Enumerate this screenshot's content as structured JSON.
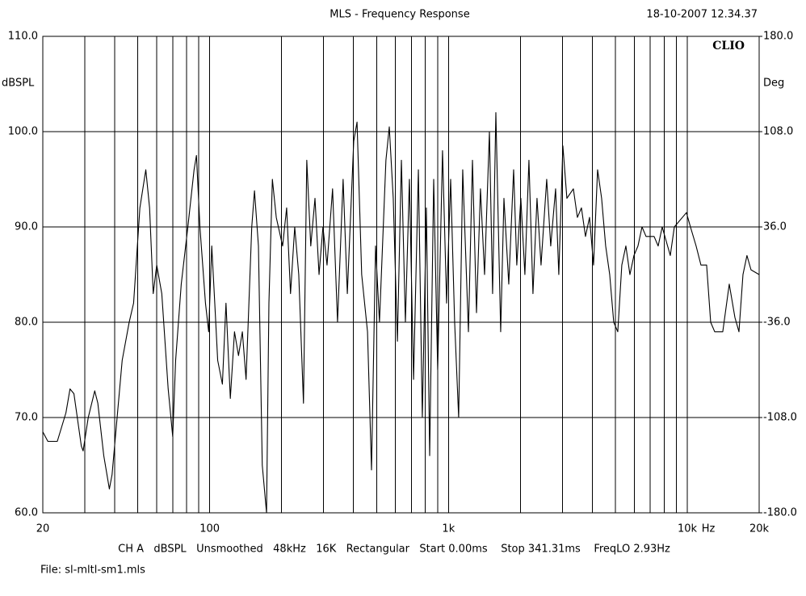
{
  "chart_data": {
    "type": "line",
    "title": "MLS - Frequency Response",
    "timestamp": "18-10-2007 12.34.37",
    "brand": "CLIO",
    "ylabel": "dBSPL",
    "y2label": "Deg",
    "x_unit": "Hz",
    "settings_line": "CH A   dBSPL   Unsmoothed   48kHz   16K   Rectangular   Start 0.00ms    Stop 341.31ms    FreqLO 2.93Hz",
    "file_line": "File: sl-mltl-sm1.mls",
    "xscale": "log",
    "xlim": [
      20,
      20000
    ],
    "xticks": [
      20,
      100,
      {
        "value": 1000,
        "label": "1k"
      },
      {
        "value": 10000,
        "label": "10k"
      },
      {
        "value": 20000,
        "label": "20k"
      }
    ],
    "xminor": [
      30,
      40,
      50,
      60,
      70,
      80,
      90,
      200,
      300,
      400,
      500,
      600,
      700,
      800,
      900,
      2000,
      3000,
      4000,
      5000,
      6000,
      7000,
      8000,
      9000
    ],
    "ylim": [
      60,
      110
    ],
    "yticks": [
      {
        "value": 110,
        "label": "110.0"
      },
      {
        "value": 100,
        "label": "100.0"
      },
      {
        "value": 90,
        "label": "90.0"
      },
      {
        "value": 80,
        "label": "80.0"
      },
      {
        "value": 70,
        "label": "70.0"
      },
      {
        "value": 60,
        "label": "60.0"
      }
    ],
    "y2lim": [
      -180,
      180
    ],
    "y2ticks": [
      {
        "value": 180,
        "label": "180.0"
      },
      {
        "value": 108,
        "label": "108.0"
      },
      {
        "value": 36,
        "label": "36.0"
      },
      {
        "value": -36,
        "label": "-36.0"
      },
      {
        "value": -108,
        "label": "-108.0"
      },
      {
        "value": -180,
        "label": "-180.0"
      }
    ],
    "grid": true,
    "color": "#000000",
    "x": [
      20,
      21,
      23,
      25,
      26,
      27,
      29,
      29.5,
      31,
      33,
      34,
      36,
      38,
      39,
      43,
      46,
      48,
      51,
      54,
      56,
      58,
      60,
      63,
      67,
      70,
      72,
      76,
      81,
      86,
      88,
      91,
      96,
      99,
      102,
      105,
      108,
      113,
      117,
      122,
      127,
      132,
      137,
      142,
      150,
      154,
      160,
      166,
      173,
      177,
      183,
      190,
      202,
      210,
      218,
      227,
      236,
      247,
      255,
      265,
      276,
      287,
      298,
      310,
      327,
      343,
      362,
      377,
      401,
      414,
      433,
      458,
      476,
      495,
      514,
      547,
      565,
      587,
      611,
      635,
      660,
      686,
      714,
      748,
      777,
      808,
      834,
      867,
      901,
      944,
      982,
      1021,
      1061,
      1103,
      1147,
      1212,
      1260,
      1310,
      1361,
      1416,
      1484,
      1530,
      1579,
      1654,
      1707,
      1788,
      1874,
      1932,
      2009,
      2089,
      2172,
      2258,
      2348,
      2441,
      2578,
      2680,
      2809,
      2897,
      3013,
      3132,
      3334,
      3466,
      3604,
      3747,
      3896,
      4050,
      4211,
      4378,
      4552,
      4733,
      4920,
      5116,
      5319,
      5531,
      5751,
      5979,
      6216,
      6463,
      6720,
      7262,
      7552,
      7852,
      8489,
      8826,
      9540,
      9918,
      10310,
      10890,
      11410,
      12050,
      12530,
      13030,
      14080,
      14990,
      15830,
      16460,
      17110,
      17780,
      18490,
      20000
    ],
    "values": [
      68.5,
      67.5,
      67.5,
      70.5,
      73,
      72.5,
      67,
      66.5,
      70,
      72.8,
      71.5,
      66,
      62.5,
      64,
      76,
      80,
      82,
      92,
      96,
      92,
      83,
      86,
      83,
      73,
      68,
      76,
      84,
      90,
      96,
      97.5,
      90,
      82,
      79,
      88,
      82,
      76,
      73.5,
      82,
      72,
      79,
      76.5,
      79,
      74,
      90,
      93.8,
      88,
      65,
      60,
      82,
      95,
      91,
      88,
      92,
      83,
      90,
      85,
      71.5,
      97,
      88,
      93,
      85,
      90,
      86,
      94,
      80,
      95,
      83,
      99,
      101,
      85,
      79,
      64.5,
      88,
      80,
      97,
      100.5,
      93,
      78,
      97,
      80,
      95,
      74,
      96,
      70,
      92,
      66,
      95,
      75,
      98,
      82,
      95,
      80,
      70,
      96,
      79,
      97,
      81,
      94,
      85,
      100,
      83,
      102,
      79,
      93,
      84,
      96,
      86,
      93,
      85,
      97,
      83,
      93,
      86,
      95,
      88,
      94,
      85,
      98.5,
      93,
      94,
      91,
      92,
      89,
      91,
      86,
      96,
      93,
      88,
      85,
      80,
      79,
      86,
      88,
      85,
      87,
      88,
      90,
      89,
      89,
      88,
      90,
      87,
      90,
      91,
      91.5,
      90,
      88,
      86,
      86,
      80,
      79,
      79,
      84,
      80.5,
      79,
      85,
      87,
      85.5,
      85
    ]
  }
}
